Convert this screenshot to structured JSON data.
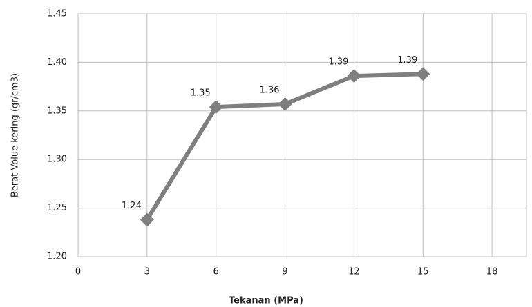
{
  "chart_data": {
    "type": "line",
    "xlabel": "Tekanan (MPa)",
    "ylabel": "Berat Volue kering (gr/cm3)",
    "x": [
      3,
      6,
      9,
      12,
      15
    ],
    "series": [
      {
        "name": "Berat Volume kering",
        "color": "#7f7f7f",
        "values": [
          1.238,
          1.354,
          1.357,
          1.386,
          1.388
        ],
        "value_labels": [
          "1.24",
          "1.35",
          "1.36",
          "1.39",
          "1.39"
        ]
      }
    ],
    "xlim": [
      0,
      19.5
    ],
    "xticks": [
      0,
      3,
      6,
      9,
      12,
      15,
      18
    ],
    "ylim": [
      1.2,
      1.45
    ],
    "yticks": [
      {
        "value": 1.2,
        "label": "1.20"
      },
      1.25,
      {
        "value": 1.3,
        "label": "1.30"
      },
      1.35,
      {
        "value": 1.4,
        "label": "1.40"
      },
      1.45
    ],
    "grid": true
  }
}
